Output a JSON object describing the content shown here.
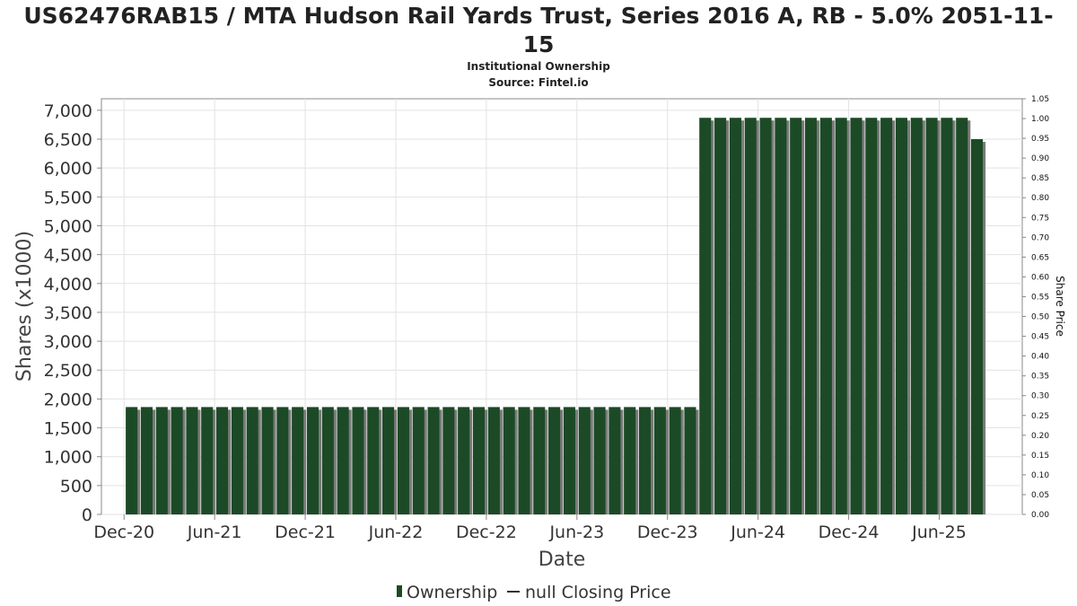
{
  "chart_data": {
    "type": "bar",
    "title_line1": "US62476RAB15 / MTA Hudson Rail Yards Trust, Series 2016 A, RB - 5.0% 2051-11-",
    "title_line2": "15",
    "subtitle_line1": "Institutional Ownership",
    "subtitle_line2": "Source: Fintel.io",
    "xlabel": "Date",
    "ylabel": "Shares (x1000)",
    "ylabel_right": "Share Price",
    "ylim": [
      0,
      7200
    ],
    "ylim_right": [
      0,
      1.05
    ],
    "y_ticks": [
      "0",
      "500",
      "1,000",
      "1,500",
      "2,000",
      "2,500",
      "3,000",
      "3,500",
      "4,000",
      "4,500",
      "5,000",
      "5,500",
      "6,000",
      "6,500",
      "7,000"
    ],
    "y_tick_values": [
      0,
      500,
      1000,
      1500,
      2000,
      2500,
      3000,
      3500,
      4000,
      4500,
      5000,
      5500,
      6000,
      6500,
      7000
    ],
    "y_right_ticks": [
      "0.00",
      "0.05",
      "0.10",
      "0.15",
      "0.20",
      "0.25",
      "0.30",
      "0.35",
      "0.40",
      "0.45",
      "0.50",
      "0.55",
      "0.60",
      "0.65",
      "0.70",
      "0.75",
      "0.80",
      "0.85",
      "0.90",
      "0.95",
      "1.00",
      "1.05"
    ],
    "y_right_tick_values": [
      0,
      0.05,
      0.1,
      0.15,
      0.2,
      0.25,
      0.3,
      0.35,
      0.4,
      0.45,
      0.5,
      0.55,
      0.6,
      0.65,
      0.7,
      0.75,
      0.8,
      0.85,
      0.9,
      0.95,
      1.0,
      1.05
    ],
    "x_ticks": [
      "Dec-20",
      "Jun-21",
      "Dec-21",
      "Jun-22",
      "Dec-22",
      "Jun-23",
      "Dec-23",
      "Jun-24",
      "Dec-24",
      "Jun-25"
    ],
    "x_tick_months": [
      0,
      6,
      12,
      18,
      24,
      30,
      36,
      42,
      48,
      54
    ],
    "x_range_months": [
      -1.5,
      59.5
    ],
    "bar_month_start": 0.5,
    "bar_month_step": 1.0,
    "series": [
      {
        "name": "Ownership",
        "color": "#1c4a26",
        "values": [
          1860,
          1860,
          1860,
          1860,
          1860,
          1860,
          1860,
          1860,
          1860,
          1860,
          1860,
          1860,
          1860,
          1860,
          1860,
          1860,
          1860,
          1860,
          1860,
          1860,
          1860,
          1860,
          1860,
          1860,
          1860,
          1860,
          1860,
          1860,
          1860,
          1860,
          1860,
          1860,
          1860,
          1860,
          1860,
          1860,
          1860,
          1860,
          6870,
          6870,
          6870,
          6870,
          6870,
          6870,
          6870,
          6870,
          6870,
          6870,
          6870,
          6870,
          6870,
          6870,
          6870,
          6870,
          6870,
          6870,
          6500
        ]
      }
    ],
    "legend": [
      {
        "label": "Ownership",
        "symbol": "bar"
      },
      {
        "label": "null Closing Price",
        "symbol": "line"
      }
    ],
    "legend_position": "bottom-center",
    "grid": true
  }
}
